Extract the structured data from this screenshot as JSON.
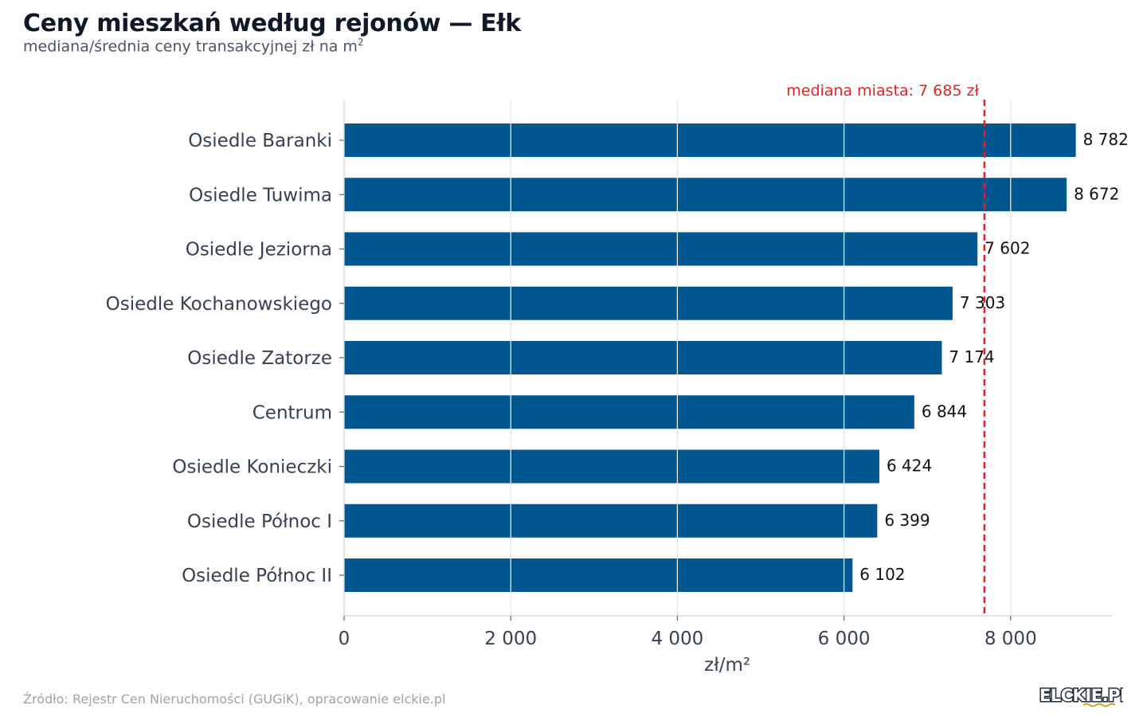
{
  "header": {
    "title": "Ceny mieszkań według rejonów — Ełk",
    "subtitle": "mediana/średnia ceny transakcyjnej zł na m",
    "subtitle_sup": "2"
  },
  "footer": {
    "source": "Źródło: Rejestr Cen Nieruchomości (GUGiK), opracowanie elckie.pl",
    "logo_text": "ELCKIE.PL"
  },
  "colors": {
    "bar": "#00568e",
    "median": "#dc2626",
    "grid": "#e5e7eb"
  },
  "chart_data": {
    "type": "bar",
    "orientation": "horizontal",
    "title": "Ceny mieszkań według rejonów — Ełk",
    "subtitle": "mediana/średnia ceny transakcyjnej zł na m²",
    "xlabel": "zł/m²",
    "ylabel": "",
    "categories": [
      "Osiedle Baranki",
      "Osiedle Tuwima",
      "Osiedle Jeziorna",
      "Osiedle Kochanowskiego",
      "Osiedle Zatorze",
      "Centrum",
      "Osiedle Konieczki",
      "Osiedle Północ I",
      "Osiedle Północ II"
    ],
    "values": [
      8782,
      8672,
      7602,
      7303,
      7174,
      6844,
      6424,
      6399,
      6102
    ],
    "value_labels": [
      "8 782",
      "8 672",
      "7 602",
      "7 303",
      "7 174",
      "6 844",
      "6 424",
      "6 399",
      "6 102"
    ],
    "xlim": [
      0,
      9240
    ],
    "xticks": [
      0,
      2000,
      4000,
      6000,
      8000
    ],
    "xtick_labels": [
      "0",
      "2 000",
      "4 000",
      "6 000",
      "8 000"
    ],
    "grid": true,
    "reference_line": {
      "value": 7685,
      "label": "mediana miasta: 7 685 zł",
      "style": "dashed"
    }
  }
}
